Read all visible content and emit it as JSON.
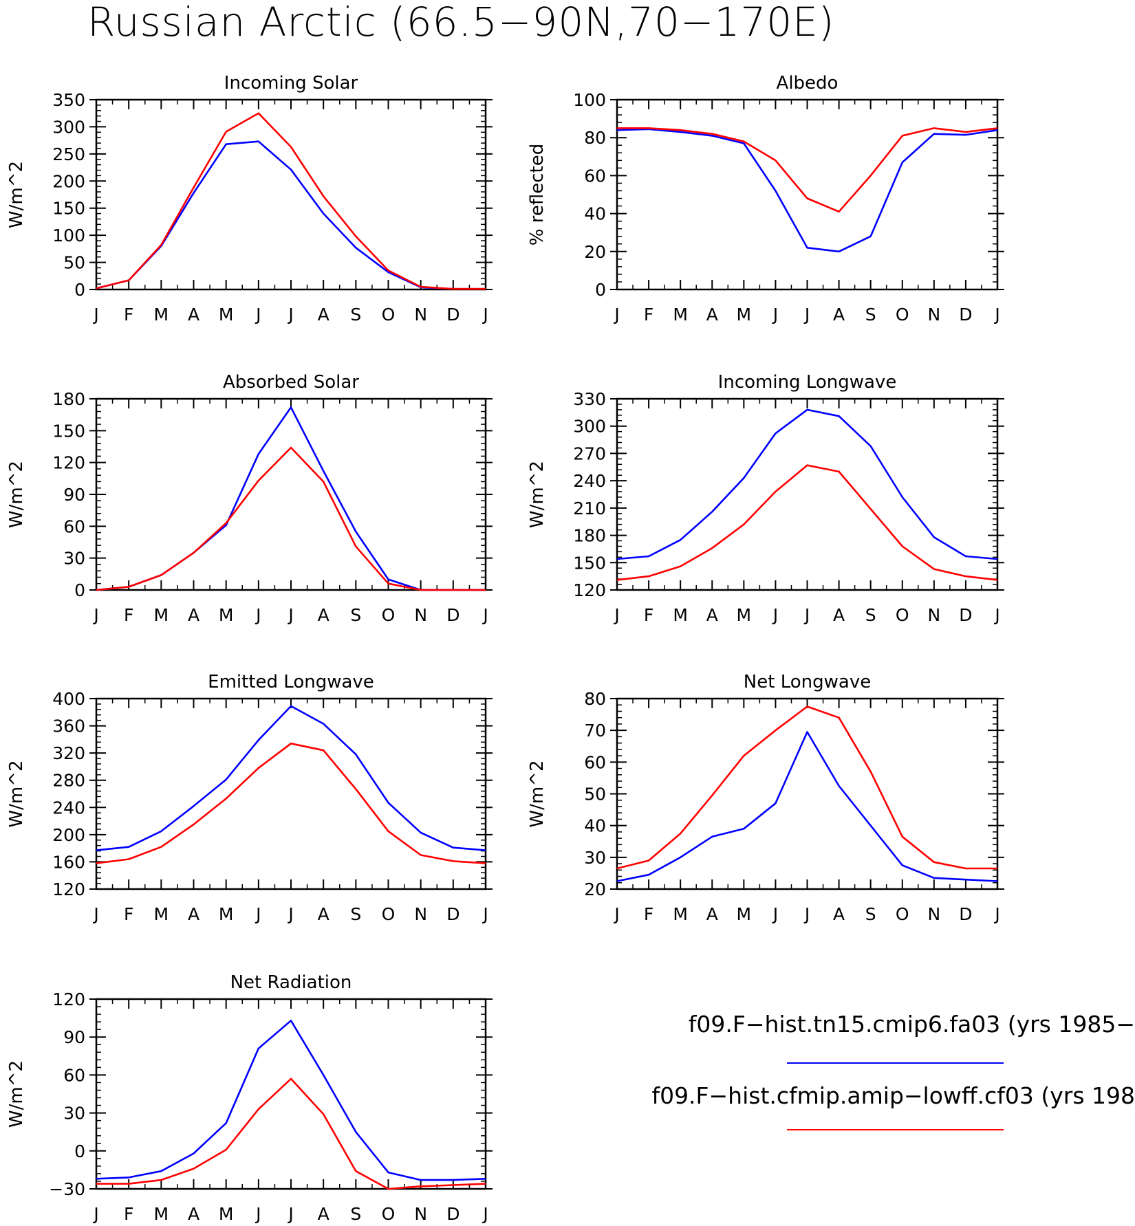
{
  "title": "Russian Arctic (66.5−90N,70−170E)",
  "legend": [
    {
      "label": "f09.F−hist.tn15.cmip6.fa03 (yrs 1985−",
      "color": "#0000ff"
    },
    {
      "label": "f09.F−hist.cfmip.amip−lowff.cf03 (yrs 198",
      "color": "#ff0000"
    }
  ],
  "chart_data": [
    {
      "type": "line",
      "title": "Incoming Solar",
      "ylabel": "W/m^2",
      "categories": [
        "J",
        "F",
        "M",
        "A",
        "M",
        "J",
        "J",
        "A",
        "S",
        "O",
        "N",
        "D",
        "J"
      ],
      "ylim": [
        0,
        350
      ],
      "yticks": [
        0,
        50,
        100,
        150,
        200,
        250,
        300,
        350
      ],
      "series": [
        {
          "color": "#0000ff",
          "values": [
            2,
            17,
            80,
            178,
            268,
            273,
            221,
            140,
            77,
            32,
            4,
            1,
            1
          ]
        },
        {
          "color": "#ff0000",
          "values": [
            2,
            17,
            82,
            188,
            291,
            325,
            263,
            172,
            98,
            35,
            5,
            1,
            1
          ]
        }
      ]
    },
    {
      "type": "line",
      "title": "Albedo",
      "ylabel": "% reflected",
      "categories": [
        "J",
        "F",
        "M",
        "A",
        "M",
        "J",
        "J",
        "A",
        "S",
        "O",
        "N",
        "D",
        "J"
      ],
      "ylim": [
        0,
        100
      ],
      "yticks": [
        0,
        20,
        40,
        60,
        80,
        100
      ],
      "series": [
        {
          "color": "#0000ff",
          "values": [
            84,
            84.5,
            83,
            81,
            77,
            52,
            22,
            20,
            28,
            67,
            82,
            81.5,
            84
          ]
        },
        {
          "color": "#ff0000",
          "values": [
            85,
            85,
            84,
            82,
            78,
            68,
            48,
            41,
            60,
            81,
            85,
            83,
            85
          ]
        }
      ]
    },
    {
      "type": "line",
      "title": "Absorbed Solar",
      "ylabel": "W/m^2",
      "categories": [
        "J",
        "F",
        "M",
        "A",
        "M",
        "J",
        "J",
        "A",
        "S",
        "O",
        "N",
        "D",
        "J"
      ],
      "ylim": [
        0,
        180
      ],
      "yticks": [
        0,
        30,
        60,
        90,
        120,
        150,
        180
      ],
      "series": [
        {
          "color": "#0000ff",
          "values": [
            0,
            3,
            14,
            35,
            61,
            128,
            172,
            112,
            55,
            10,
            0,
            0,
            0
          ]
        },
        {
          "color": "#ff0000",
          "values": [
            0,
            3,
            14,
            35,
            63,
            103,
            134,
            102,
            41,
            6,
            0,
            0,
            0
          ]
        }
      ]
    },
    {
      "type": "line",
      "title": "Incoming Longwave",
      "ylabel": "W/m^2",
      "categories": [
        "J",
        "F",
        "M",
        "A",
        "M",
        "J",
        "J",
        "A",
        "S",
        "O",
        "N",
        "D",
        "J"
      ],
      "ylim": [
        120,
        330
      ],
      "yticks": [
        120,
        150,
        180,
        210,
        240,
        270,
        300,
        330
      ],
      "series": [
        {
          "color": "#0000ff",
          "values": [
            154,
            157,
            175,
            206,
            243,
            292,
            318,
            311,
            278,
            222,
            178,
            157,
            154
          ]
        },
        {
          "color": "#ff0000",
          "values": [
            131,
            135,
            146,
            166,
            192,
            228,
            257,
            250,
            209,
            168,
            143,
            135,
            131
          ]
        }
      ]
    },
    {
      "type": "line",
      "title": "Emitted Longwave",
      "ylabel": "W/m^2",
      "categories": [
        "J",
        "F",
        "M",
        "A",
        "M",
        "J",
        "J",
        "A",
        "S",
        "O",
        "N",
        "D",
        "J"
      ],
      "ylim": [
        120,
        400
      ],
      "yticks": [
        120,
        160,
        200,
        240,
        280,
        320,
        360,
        400
      ],
      "series": [
        {
          "color": "#0000ff",
          "values": [
            177,
            182,
            205,
            242,
            281,
            339,
            389,
            363,
            318,
            247,
            203,
            181,
            177
          ]
        },
        {
          "color": "#ff0000",
          "values": [
            158,
            164,
            182,
            215,
            253,
            298,
            334,
            324,
            267,
            205,
            170,
            161,
            158
          ]
        }
      ]
    },
    {
      "type": "line",
      "title": "Net Longwave",
      "ylabel": "W/m^2",
      "categories": [
        "J",
        "F",
        "M",
        "A",
        "M",
        "J",
        "J",
        "A",
        "S",
        "O",
        "N",
        "D",
        "J"
      ],
      "ylim": [
        20,
        80
      ],
      "yticks": [
        20,
        30,
        40,
        50,
        60,
        70,
        80
      ],
      "series": [
        {
          "color": "#0000ff",
          "values": [
            22.5,
            24.5,
            30,
            36.5,
            39,
            47,
            69.5,
            52.5,
            40,
            27.5,
            23.5,
            23,
            22.5
          ]
        },
        {
          "color": "#ff0000",
          "values": [
            26.5,
            29,
            37.5,
            49.5,
            62,
            70,
            77.5,
            74,
            57,
            36.5,
            28.5,
            26.5,
            26.5
          ]
        }
      ]
    },
    {
      "type": "line",
      "title": "Net Radiation",
      "ylabel": "W/m^2",
      "categories": [
        "J",
        "F",
        "M",
        "A",
        "M",
        "J",
        "J",
        "A",
        "S",
        "O",
        "N",
        "D",
        "J"
      ],
      "ylim": [
        -30,
        120
      ],
      "yticks": [
        -30,
        0,
        30,
        60,
        90,
        120
      ],
      "series": [
        {
          "color": "#0000ff",
          "values": [
            -22,
            -21,
            -16,
            -2,
            22,
            81,
            103,
            60,
            15,
            -17,
            -23,
            -23,
            -22
          ]
        },
        {
          "color": "#ff0000",
          "values": [
            -26,
            -26,
            -23,
            -14,
            1,
            33,
            57,
            29,
            -16,
            -30,
            -28,
            -27,
            -26
          ]
        }
      ]
    }
  ]
}
